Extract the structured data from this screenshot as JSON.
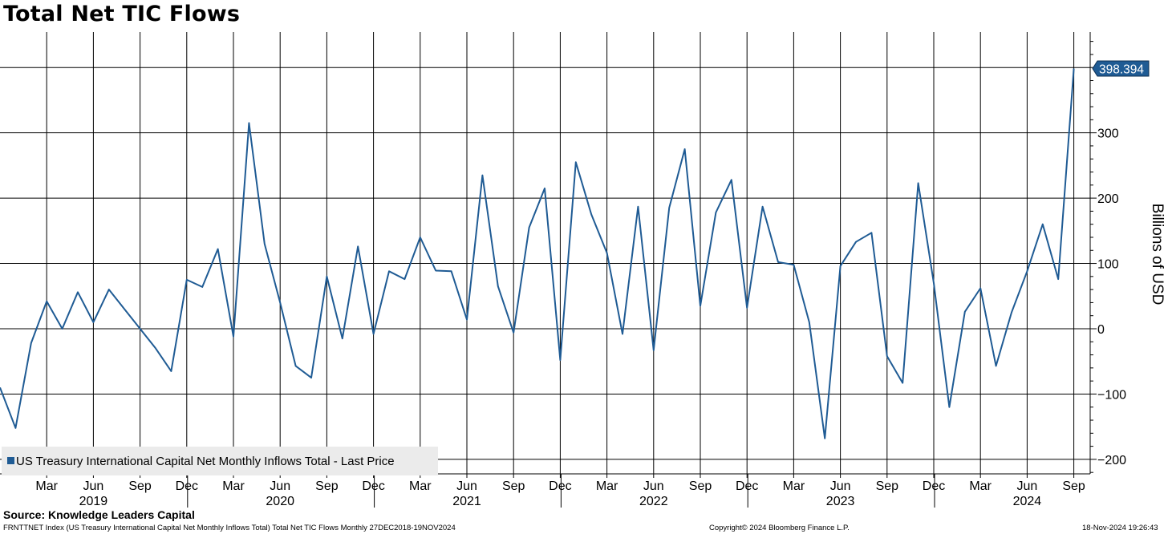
{
  "title": "Total Net TIC Flows",
  "source": "Source: Knowledge Leaders Capital",
  "footer": {
    "left": "FRNTTNET Index (US Treasury International Capital Net Monthly Inflows Total) Total Net TIC Flows  Monthly 27DEC2018-19NOV2024",
    "copyright": "Copyright© 2024 Bloomberg Finance L.P.",
    "timestamp": "18-Nov-2024 19:26:43"
  },
  "chart_data": {
    "type": "line",
    "title": "Total Net TIC Flows",
    "ylabel": "Billions of USD",
    "xlabel": "",
    "ylim": [
      -225,
      455
    ],
    "yticks": [
      -200,
      -100,
      0,
      100,
      200,
      300
    ],
    "grid": true,
    "axis_side": "right",
    "legend": {
      "position": "bottom-left",
      "label": "US Treasury International Capital Net Monthly Inflows Total - Last Price"
    },
    "last_value_label": "398.394",
    "series_color": "#1f5b94",
    "x_month_ticks": [
      {
        "label": "Mar",
        "index": 3
      },
      {
        "label": "Jun",
        "index": 6
      },
      {
        "label": "Sep",
        "index": 9
      },
      {
        "label": "Dec",
        "index": 12
      },
      {
        "label": "Mar",
        "index": 15
      },
      {
        "label": "Jun",
        "index": 18
      },
      {
        "label": "Sep",
        "index": 21
      },
      {
        "label": "Dec",
        "index": 24
      },
      {
        "label": "Mar",
        "index": 27
      },
      {
        "label": "Jun",
        "index": 30
      },
      {
        "label": "Sep",
        "index": 33
      },
      {
        "label": "Dec",
        "index": 36
      },
      {
        "label": "Mar",
        "index": 39
      },
      {
        "label": "Jun",
        "index": 42
      },
      {
        "label": "Sep",
        "index": 45
      },
      {
        "label": "Dec",
        "index": 48
      },
      {
        "label": "Mar",
        "index": 51
      },
      {
        "label": "Jun",
        "index": 54
      },
      {
        "label": "Sep",
        "index": 57
      },
      {
        "label": "Dec",
        "index": 60
      },
      {
        "label": "Mar",
        "index": 63
      },
      {
        "label": "Jun",
        "index": 66
      },
      {
        "label": "Sep",
        "index": 69
      }
    ],
    "x_year_labels": [
      {
        "label": "2019",
        "index": 6
      },
      {
        "label": "2020",
        "index": 18
      },
      {
        "label": "2021",
        "index": 30
      },
      {
        "label": "2022",
        "index": 42
      },
      {
        "label": "2023",
        "index": 54
      },
      {
        "label": "2024",
        "index": 66
      }
    ],
    "x_year_separators": [
      12,
      24,
      36,
      48,
      60
    ],
    "series": [
      {
        "name": "US Treasury International Capital Net Monthly Inflows Total - Last Price",
        "x_start": "Dec 2018",
        "values": [
          -90,
          -152,
          -22,
          42,
          0,
          56,
          10,
          60,
          30,
          0,
          -30,
          -65,
          75,
          64,
          122,
          -12,
          315,
          130,
          40,
          -57,
          -75,
          80,
          -15,
          126,
          -8,
          88,
          76,
          140,
          89,
          88,
          14,
          235,
          65,
          -6,
          155,
          215,
          -48,
          255,
          175,
          116,
          -8,
          187,
          -33,
          185,
          275,
          35,
          178,
          228,
          32,
          187,
          102,
          98,
          10,
          -168,
          96,
          133,
          147,
          -42,
          -83,
          223,
          70,
          -120,
          26,
          62,
          -57,
          25,
          88,
          160,
          76,
          398.394
        ]
      }
    ]
  }
}
